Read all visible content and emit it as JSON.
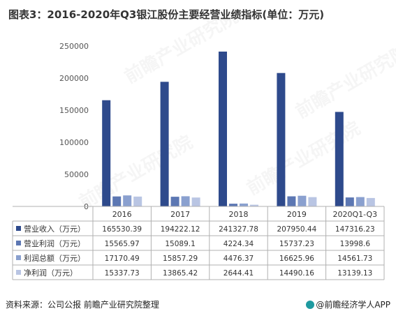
{
  "title": "图表3：2016-2020年Q3银江股份主要经营业绩指标(单位：万元)",
  "footer": {
    "source": "资料来源：公司公报 前瞻产业研究院整理",
    "brand": "@前瞻经济学人APP"
  },
  "watermark": "前瞻产业研究院",
  "colors": {
    "s1": "#2e4a8c",
    "s2": "#5c77b3",
    "s3": "#8aa0cf",
    "s4": "#b9c5e3",
    "axis": "#b0b0b0",
    "grid_text": "#555555"
  },
  "chart_data": {
    "type": "bar",
    "title": "图表3：2016-2020年Q3银江股份主要经营业绩指标(单位：万元)",
    "categories": [
      "2016",
      "2017",
      "2018",
      "2019",
      "2020Q1-Q3"
    ],
    "ylim": [
      0,
      250000
    ],
    "yticks": [
      "0",
      "50000",
      "100000",
      "150000",
      "200000",
      "250000"
    ],
    "grid": false,
    "legend": "table-left",
    "series": [
      {
        "name": "营业收入（万元）",
        "values": [
          165530.39,
          194222.12,
          241327.78,
          207950.44,
          147316.23
        ],
        "labels": [
          "165530.39",
          "194222.12",
          "241327.78",
          "207950.44",
          "147316.23"
        ]
      },
      {
        "name": "营业利润（万元）",
        "values": [
          15565.97,
          15089.1,
          4224.34,
          15737.23,
          13998.6
        ],
        "labels": [
          "15565.97",
          "15089.1",
          "4224.34",
          "15737.23",
          "13998.6"
        ]
      },
      {
        "name": "利润总额（万元）",
        "values": [
          17170.49,
          15857.29,
          4476.37,
          16625.96,
          14561.73
        ],
        "labels": [
          "17170.49",
          "15857.29",
          "4476.37",
          "16625.96",
          "14561.73"
        ]
      },
      {
        "name": "净利润（万元）",
        "values": [
          15337.73,
          13865.42,
          2644.41,
          14490.16,
          13139.13
        ],
        "labels": [
          "15337.73",
          "13865.42",
          "2644.41",
          "14490.16",
          "13139.13"
        ]
      }
    ]
  }
}
